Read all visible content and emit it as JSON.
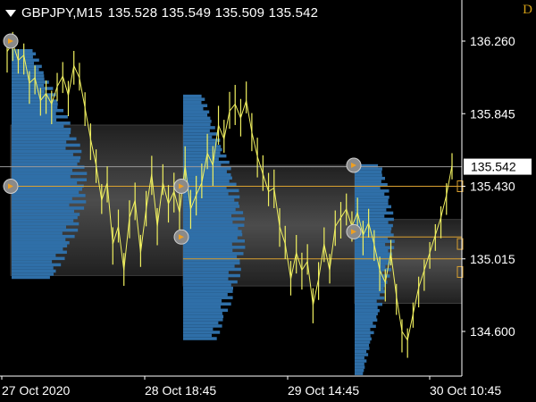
{
  "header": {
    "symbol_timeframe": "GBPJPY,M15",
    "ohlc": "135.528 135.549 135.509 135.542",
    "corner_mark": "D"
  },
  "price_axis": {
    "ticks": [
      "136.260",
      "135.845",
      "135.430",
      "135.015",
      "134.600"
    ],
    "current_price": "135.542"
  },
  "time_axis": {
    "labels": [
      "27 Oct 2020",
      "28 Oct 18:45",
      "29 Oct 14:45",
      "30 Oct 10:45"
    ]
  },
  "colors": {
    "background": "#000000",
    "price_line": "#f0f060",
    "volume_profile": "#2f6fa8",
    "value_area_level": "#d9a030",
    "current_price_line": "#9a9a9a",
    "axis_text": "#ffffff"
  },
  "icons": [
    "dropdown-triangle-icon",
    "profile-marker-icon"
  ],
  "chart_data": {
    "type": "line",
    "symbol": "GBPJPY",
    "timeframe": "M15",
    "ylim": [
      134.4,
      136.45
    ],
    "y_ticks": [
      136.26,
      135.845,
      135.43,
      135.015,
      134.6
    ],
    "x_tick_labels": [
      "27 Oct 2020",
      "28 Oct 18:45",
      "29 Oct 14:45",
      "30 Oct 10:45"
    ],
    "current_price": 135.542,
    "series": [
      {
        "values": [
          136.2,
          136.25,
          136.15,
          136.18,
          136.02,
          136.05,
          135.92,
          135.96,
          135.9,
          136.0,
          136.06,
          135.95,
          136.12,
          136.05,
          135.88,
          135.7,
          135.55,
          135.35,
          135.45,
          135.1,
          135.2,
          134.95,
          135.25,
          135.35,
          135.05,
          135.3,
          135.5,
          135.2,
          135.45,
          135.33,
          135.4,
          135.28,
          135.55,
          135.3,
          135.38,
          135.45,
          135.62,
          135.55,
          135.78,
          135.7,
          135.86,
          135.9,
          135.82,
          135.92,
          135.74,
          135.6,
          135.5,
          135.4,
          135.42,
          135.2,
          135.1,
          134.9,
          135.05,
          134.95,
          135.0,
          134.75,
          134.9,
          135.1,
          134.95,
          135.2,
          135.25,
          135.3,
          135.2,
          135.28,
          135.15,
          135.22,
          135.1,
          134.95,
          134.88,
          135.05,
          134.8,
          134.6,
          134.55,
          134.7,
          134.85,
          134.95,
          135.05,
          135.15,
          135.25,
          135.38,
          135.55
        ]
      }
    ],
    "profiles": [
      {
        "session": "27 Oct 2020",
        "poc": 135.43,
        "va_high": 135.78,
        "va_low": 134.92,
        "marker_prices": [
          136.26,
          135.43
        ]
      },
      {
        "session": "28 Oct 18:45",
        "poc": 135.14,
        "va_high": 135.55,
        "va_low": 134.86,
        "marker_prices": [
          135.43,
          135.14
        ]
      },
      {
        "session": "29 Oct 14:45",
        "poc": 135.14,
        "va_high": 135.24,
        "va_low": 134.76,
        "marker_prices": [
          135.55,
          135.17
        ]
      }
    ],
    "horizontal_levels": [
      135.43,
      135.015,
      135.14
    ],
    "grid": false,
    "legend": "none"
  }
}
